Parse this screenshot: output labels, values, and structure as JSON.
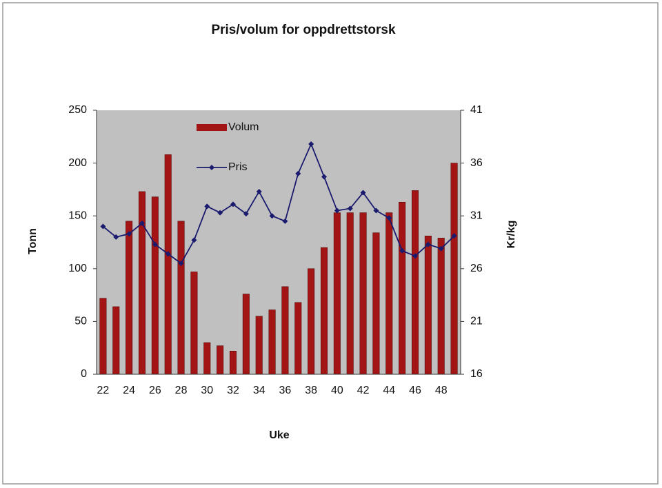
{
  "chart_data": {
    "type": "bar",
    "title": "Pris/volum for oppdrettstorsk",
    "x_label": "Uke",
    "y_label": "Tonn",
    "y2_label": "Kr/kg",
    "categories": [
      22,
      null,
      24,
      null,
      26,
      null,
      28,
      null,
      30,
      null,
      32,
      null,
      34,
      null,
      36,
      null,
      38,
      null,
      40,
      null,
      42,
      null,
      44,
      null,
      46,
      null,
      48,
      null
    ],
    "series": [
      {
        "name": "Volum",
        "type": "bar",
        "color": "#a31515",
        "values": [
          72,
          64,
          145,
          173,
          168,
          208,
          145,
          97,
          30,
          27,
          22,
          76,
          55,
          61,
          83,
          68,
          100,
          120,
          153,
          153,
          153,
          134,
          153,
          163,
          174,
          131,
          129,
          200
        ]
      },
      {
        "name": "Pris",
        "type": "line",
        "axis": "y2",
        "color": "#1a1a6e",
        "values": [
          30.0,
          29.0,
          29.3,
          30.3,
          28.3,
          27.4,
          26.5,
          28.7,
          31.9,
          31.3,
          32.1,
          31.2,
          33.3,
          31.0,
          30.5,
          35.0,
          37.8,
          34.7,
          31.5,
          31.7,
          33.2,
          31.5,
          30.8,
          27.7,
          27.2,
          28.3,
          27.9,
          29.1
        ]
      }
    ],
    "ylim": [
      0,
      250
    ],
    "yticks": [
      0,
      50,
      100,
      150,
      200,
      250
    ],
    "y2lim": [
      16,
      41
    ],
    "y2ticks": [
      16,
      21,
      26,
      31,
      36,
      41
    ],
    "grid": false,
    "legend": "upper left",
    "plot_background": "#c0c0c0"
  }
}
